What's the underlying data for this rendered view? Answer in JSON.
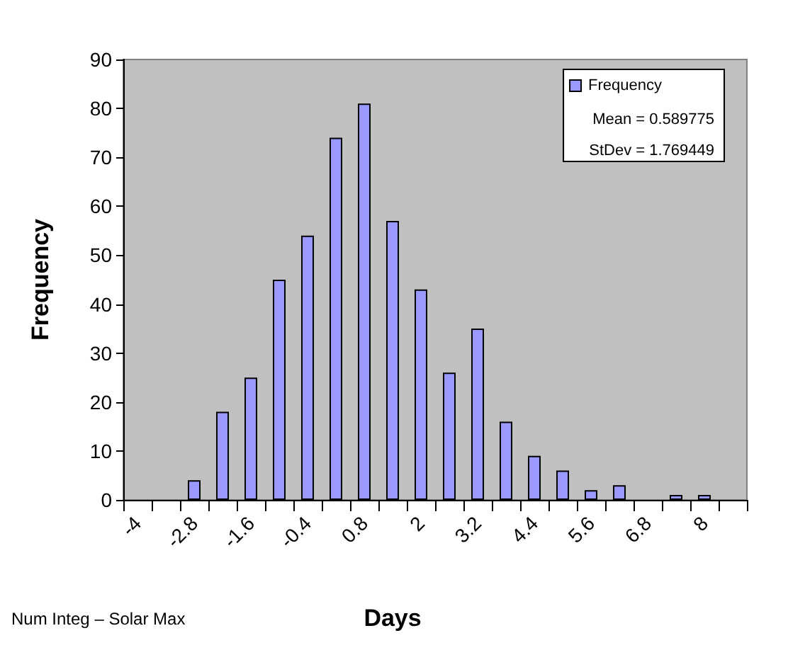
{
  "chart_data": {
    "type": "bar",
    "xlabel": "Days",
    "ylabel": "Frequency",
    "categories": [
      "-4",
      null,
      "-2.8",
      null,
      "-1.6",
      null,
      "-0.4",
      null,
      "0.8",
      null,
      "2",
      null,
      "3.2",
      null,
      "4.4",
      null,
      "5.6",
      null,
      "6.8",
      null,
      "8",
      null
    ],
    "series": [
      {
        "name": "Frequency",
        "color": "#9999ff",
        "values": [
          0,
          0,
          4,
          18,
          25,
          45,
          54,
          74,
          81,
          57,
          43,
          26,
          35,
          16,
          9,
          6,
          2,
          3,
          0,
          1,
          1,
          0
        ]
      }
    ],
    "ylim": [
      0,
      90
    ],
    "yticks": [
      0,
      10,
      20,
      30,
      40,
      50,
      60,
      70,
      80,
      90
    ],
    "grid": false,
    "legend": "top right",
    "annotations": [
      "Mean = 0.589775",
      "StDev = 1.769449",
      "Num Integ – Solar Max"
    ]
  }
}
